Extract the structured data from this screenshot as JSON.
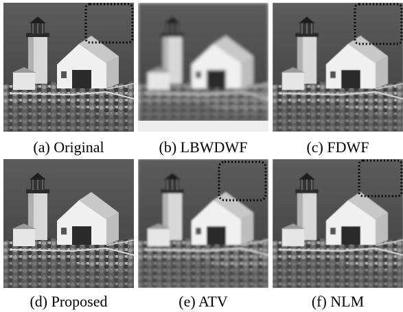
{
  "panels": [
    {
      "caption": "(a) Original"
    },
    {
      "caption": "(b) LBWDWF"
    },
    {
      "caption": "(c) FDWF"
    },
    {
      "caption": "(d) Proposed"
    },
    {
      "caption": "(e) ATV"
    },
    {
      "caption": "(f) NLM"
    }
  ]
}
